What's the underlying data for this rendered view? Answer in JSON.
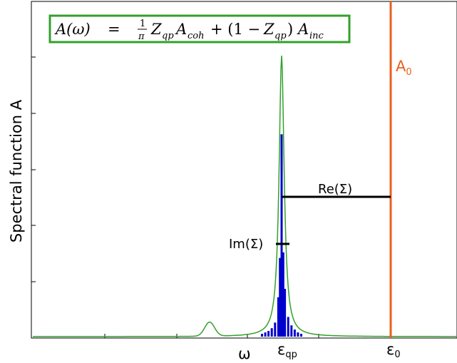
{
  "formula": {
    "lhs": "A(ω)",
    "eq": "=",
    "one": "1",
    "pi": "π",
    "zqp1": "Z",
    "zqp1_sub": "qp",
    "acoh": "A",
    "acoh_sub": "coh",
    "plus": "+ (1 −",
    "zqp2": "Z",
    "zqp2_sub": "qp",
    "close": ")",
    "ainc": "A",
    "ainc_sub": "inc"
  },
  "ylabel": "Spectral function A",
  "labels": {
    "a0_main": "A",
    "a0_sub": "0",
    "re_sigma": "Re(Σ)",
    "im_sigma": "Im(Σ)",
    "omega": "ω",
    "eps_qp_main": "ε",
    "eps_qp_sub": "qp",
    "eps0_main": "ε",
    "eps0_sub": "0"
  },
  "colors": {
    "frame": "#000000",
    "curve": "#33a02c",
    "formula_box": "#33a02c",
    "bars": "#0000cc",
    "orange": "#e8601c",
    "annot": "#000000"
  },
  "chart_data": {
    "type": "line",
    "qp_peak_x": 0,
    "eps0_x": 1,
    "curve": "lorentzian peak at eps_qp with small satellite at lower energy",
    "bars": [
      {
        "x": -0.18,
        "h": 0.01
      },
      {
        "x": -0.15,
        "h": 0.015
      },
      {
        "x": -0.12,
        "h": 0.02
      },
      {
        "x": -0.09,
        "h": 0.03
      },
      {
        "x": -0.06,
        "h": 0.05
      },
      {
        "x": -0.03,
        "h": 0.14
      },
      {
        "x": -0.015,
        "h": 0.28
      },
      {
        "x": 0.0,
        "h": 0.72
      },
      {
        "x": 0.015,
        "h": 0.3
      },
      {
        "x": 0.03,
        "h": 0.17
      },
      {
        "x": 0.06,
        "h": 0.07
      },
      {
        "x": 0.09,
        "h": 0.04
      },
      {
        "x": 0.12,
        "h": 0.025
      },
      {
        "x": 0.15,
        "h": 0.015
      },
      {
        "x": 0.18,
        "h": 0.01
      }
    ]
  }
}
